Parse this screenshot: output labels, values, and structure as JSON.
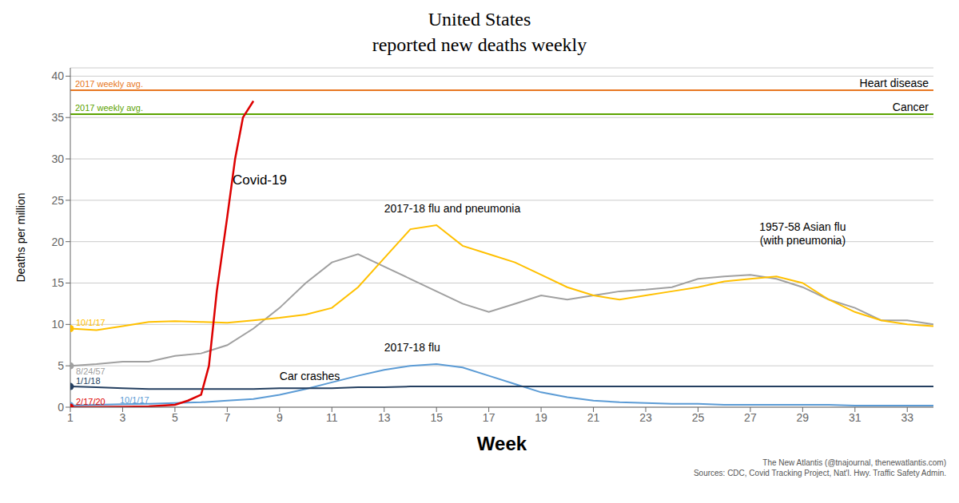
{
  "chart_data": {
    "type": "line",
    "title": "United States",
    "subtitle": "reported new deaths weekly",
    "xlabel": "Week",
    "ylabel": "Deaths per million",
    "xlim": [
      1,
      34
    ],
    "ylim": [
      0,
      41
    ],
    "xticks": [
      1,
      3,
      5,
      7,
      9,
      11,
      13,
      15,
      17,
      19,
      21,
      23,
      25,
      27,
      29,
      31,
      33
    ],
    "yticks": [
      0,
      5,
      10,
      15,
      20,
      25,
      30,
      35,
      40
    ],
    "grid": "y",
    "reference_lines": [
      {
        "name": "Heart disease",
        "value": 38.3,
        "color": "#E87722",
        "annotation": "2017 weekly avg."
      },
      {
        "name": "Cancer",
        "value": 35.4,
        "color": "#5BA300",
        "annotation": "2017 weekly avg."
      }
    ],
    "series": [
      {
        "name": "1957-58 Asian flu\n(with pneumonia)",
        "color": "#A0A0A0",
        "start_label": "8/24/57",
        "x": [
          1,
          2,
          3,
          4,
          5,
          6,
          7,
          8,
          9,
          10,
          11,
          12,
          13,
          14,
          15,
          16,
          17,
          18,
          19,
          20,
          21,
          22,
          23,
          24,
          25,
          26,
          27,
          28,
          29,
          30,
          31,
          32,
          33,
          34
        ],
        "values": [
          5.0,
          5.2,
          5.5,
          5.5,
          6.2,
          6.5,
          7.5,
          9.5,
          12.0,
          15.0,
          17.5,
          18.5,
          17.0,
          15.5,
          14.0,
          12.5,
          11.5,
          12.5,
          13.5,
          13.0,
          13.5,
          14.0,
          14.2,
          14.5,
          15.5,
          15.8,
          16.0,
          15.5,
          14.5,
          13.0,
          12.0,
          10.5,
          10.5,
          10.0
        ]
      },
      {
        "name": "2017-18 flu and pneumonia",
        "color": "#FFC000",
        "start_label": "10/1/17",
        "x": [
          1,
          2,
          3,
          4,
          5,
          6,
          7,
          8,
          9,
          10,
          11,
          12,
          13,
          14,
          15,
          16,
          17,
          18,
          19,
          20,
          21,
          22,
          23,
          24,
          25,
          26,
          27,
          28,
          29,
          30,
          31,
          32,
          33,
          34
        ],
        "values": [
          9.5,
          9.3,
          9.8,
          10.3,
          10.4,
          10.3,
          10.2,
          10.5,
          10.8,
          11.2,
          12.0,
          14.5,
          18.0,
          21.5,
          22.0,
          19.5,
          18.5,
          17.5,
          16.0,
          14.5,
          13.5,
          13.0,
          13.5,
          14.0,
          14.5,
          15.2,
          15.5,
          15.8,
          15.0,
          13.0,
          11.5,
          10.5,
          10.0,
          9.8
        ]
      },
      {
        "name": "2017-18 flu",
        "color": "#5B9BD5",
        "start_label": "10/1/17",
        "x": [
          1,
          2,
          3,
          4,
          5,
          6,
          7,
          8,
          9,
          10,
          11,
          12,
          13,
          14,
          15,
          16,
          17,
          18,
          19,
          20,
          21,
          22,
          23,
          24,
          25,
          26,
          27,
          28,
          29,
          30,
          31,
          32,
          33,
          34
        ],
        "values": [
          0.2,
          0.3,
          0.35,
          0.4,
          0.5,
          0.6,
          0.8,
          1.0,
          1.5,
          2.2,
          3.0,
          3.8,
          4.5,
          5.0,
          5.2,
          4.8,
          3.8,
          2.8,
          1.8,
          1.2,
          0.8,
          0.6,
          0.5,
          0.4,
          0.4,
          0.3,
          0.3,
          0.3,
          0.3,
          0.3,
          0.2,
          0.2,
          0.2,
          0.2
        ]
      },
      {
        "name": "Car crashes",
        "color": "#243F60",
        "start_label": "1/1/18",
        "x": [
          1,
          2,
          3,
          4,
          5,
          6,
          7,
          8,
          9,
          10,
          11,
          12,
          13,
          14,
          15,
          16,
          17,
          18,
          19,
          20,
          21,
          22,
          23,
          24,
          25,
          26,
          27,
          28,
          29,
          30,
          31,
          32,
          33,
          34
        ],
        "values": [
          2.5,
          2.4,
          2.3,
          2.2,
          2.2,
          2.2,
          2.2,
          2.2,
          2.3,
          2.3,
          2.3,
          2.4,
          2.4,
          2.5,
          2.5,
          2.5,
          2.5,
          2.5,
          2.5,
          2.5,
          2.5,
          2.5,
          2.5,
          2.5,
          2.5,
          2.5,
          2.5,
          2.5,
          2.5,
          2.5,
          2.5,
          2.5,
          2.5,
          2.5
        ]
      },
      {
        "name": "Covid-19",
        "color": "#DD0000",
        "start_label": "2/17/20",
        "x": [
          1,
          2,
          3,
          4,
          5,
          5.5,
          6,
          6.3,
          6.6,
          7,
          7.3,
          7.6,
          8
        ],
        "values": [
          0.0,
          0.02,
          0.04,
          0.1,
          0.3,
          0.8,
          1.5,
          5.0,
          14.0,
          23.0,
          30.0,
          35.0,
          37.0
        ]
      }
    ],
    "source": "The New Atlantis (@tnajournal, thenewatlantis.com)\nSources: CDC, Covid Tracking Project, Nat'l. Hwy. Traffic Safety Admin."
  }
}
